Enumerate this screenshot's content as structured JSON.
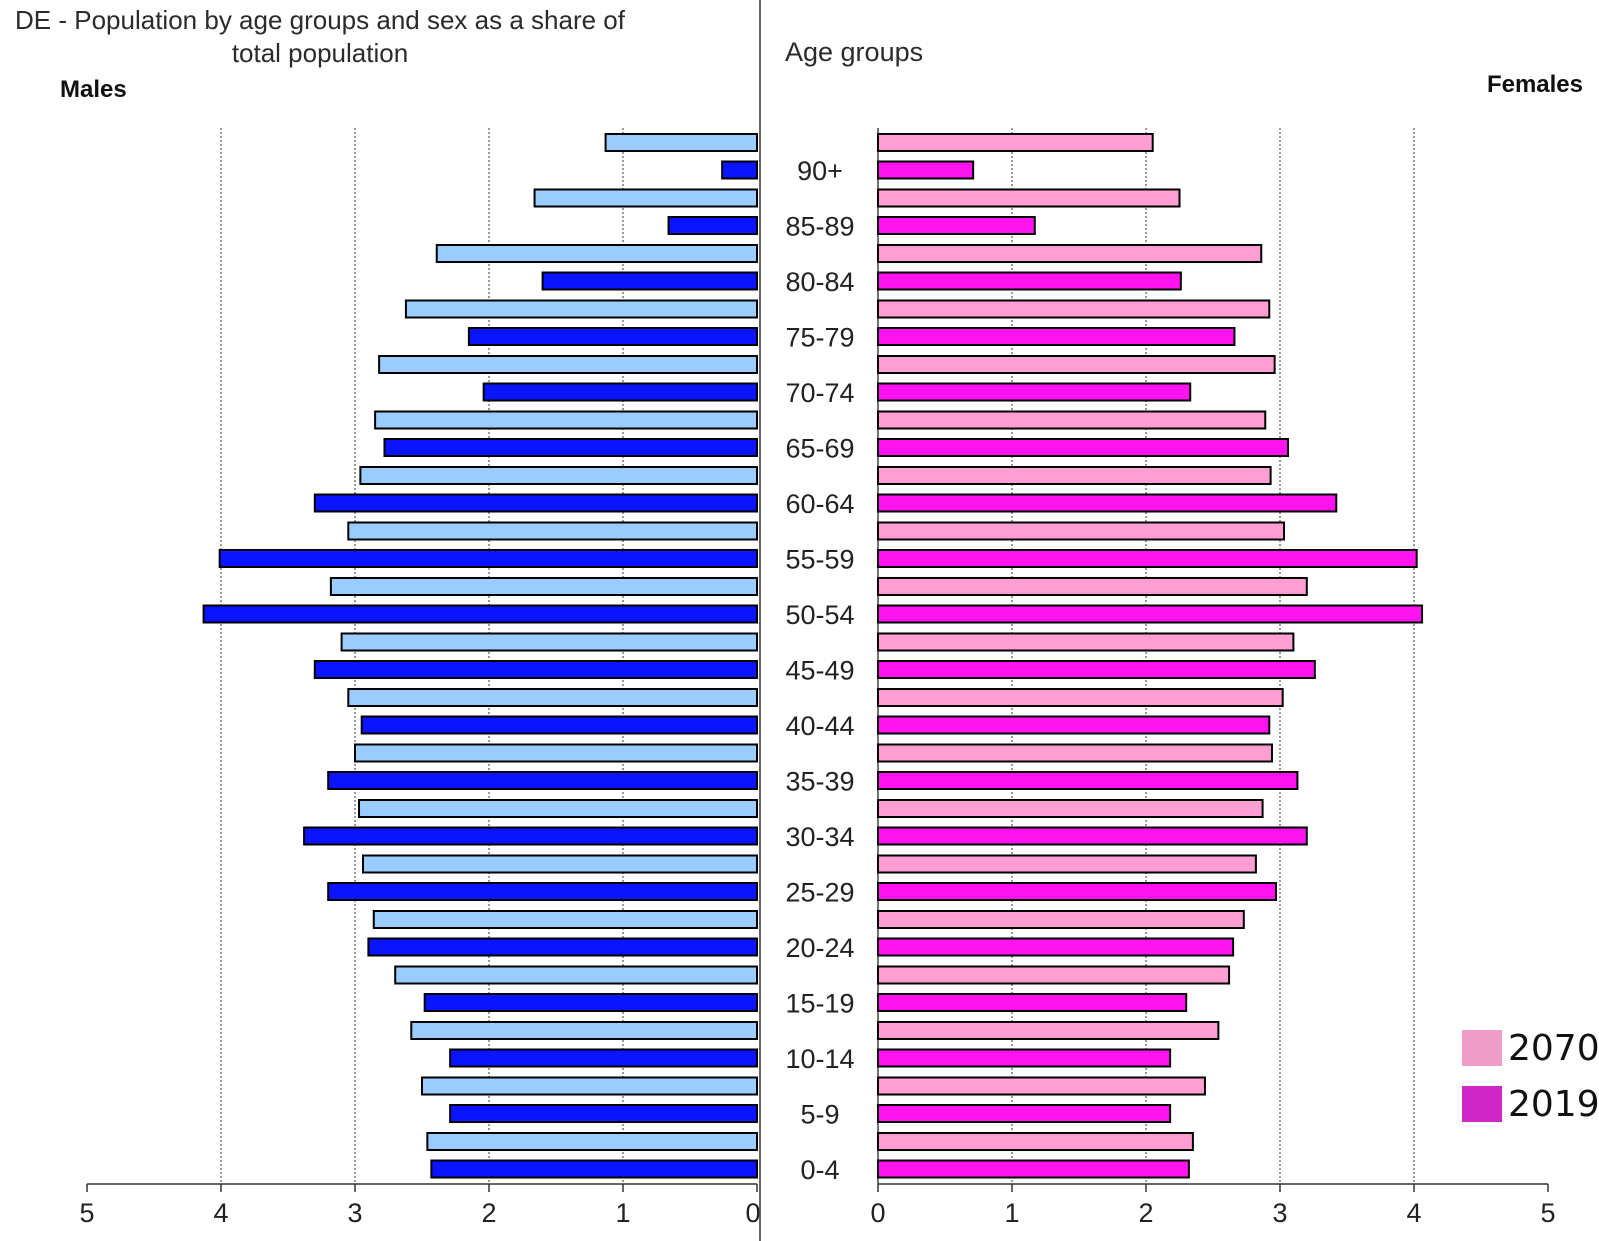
{
  "header": {
    "title": "DE - Population by age groups and sex as a share of total population",
    "males_label": "Males",
    "females_label": "Females",
    "age_label": "Age groups"
  },
  "legend": [
    {
      "label": "2070",
      "color": "#ef9cc9"
    },
    {
      "label": "2019",
      "color": "#cf28c6"
    }
  ],
  "chart_data": {
    "type": "bar",
    "orientation": "horizontal",
    "subtype": "population-pyramid",
    "title": "DE - Population by age groups and sex as a share of total population",
    "categories": [
      "0-4",
      "5-9",
      "10-14",
      "15-19",
      "20-24",
      "25-29",
      "30-34",
      "35-39",
      "40-44",
      "45-49",
      "50-54",
      "55-59",
      "60-64",
      "65-69",
      "70-74",
      "75-79",
      "80-84",
      "85-89",
      "90+"
    ],
    "x_axis_ticks": [
      0,
      1,
      2,
      3,
      4,
      5
    ],
    "xlim": [
      0,
      5
    ],
    "grid": "vertical dotted",
    "legend_position": "bottom-right",
    "series": [
      {
        "name": "2019",
        "sex": "Males",
        "color": "#0a14ff",
        "values": [
          2.43,
          2.29,
          2.29,
          2.48,
          2.9,
          3.2,
          3.38,
          3.2,
          2.95,
          3.3,
          4.13,
          4.01,
          3.3,
          2.78,
          2.04,
          2.15,
          1.6,
          0.66,
          0.26
        ]
      },
      {
        "name": "2070",
        "sex": "Males",
        "color": "#9bccff",
        "values": [
          2.46,
          2.5,
          2.58,
          2.7,
          2.86,
          2.94,
          2.97,
          3.0,
          3.05,
          3.1,
          3.18,
          3.05,
          2.96,
          2.85,
          2.82,
          2.62,
          2.39,
          1.66,
          1.13
        ]
      },
      {
        "name": "2019",
        "sex": "Females",
        "color": "#ff14f0",
        "values": [
          2.32,
          2.18,
          2.18,
          2.3,
          2.65,
          2.97,
          3.2,
          3.13,
          2.92,
          3.26,
          4.06,
          4.02,
          3.42,
          3.06,
          2.33,
          2.66,
          2.26,
          1.17,
          0.71
        ]
      },
      {
        "name": "2070",
        "sex": "Females",
        "color": "#ff9ed2",
        "values": [
          2.35,
          2.44,
          2.54,
          2.62,
          2.73,
          2.82,
          2.87,
          2.94,
          3.02,
          3.1,
          3.2,
          3.03,
          2.93,
          2.89,
          2.96,
          2.92,
          2.86,
          2.25,
          2.05
        ]
      }
    ]
  }
}
